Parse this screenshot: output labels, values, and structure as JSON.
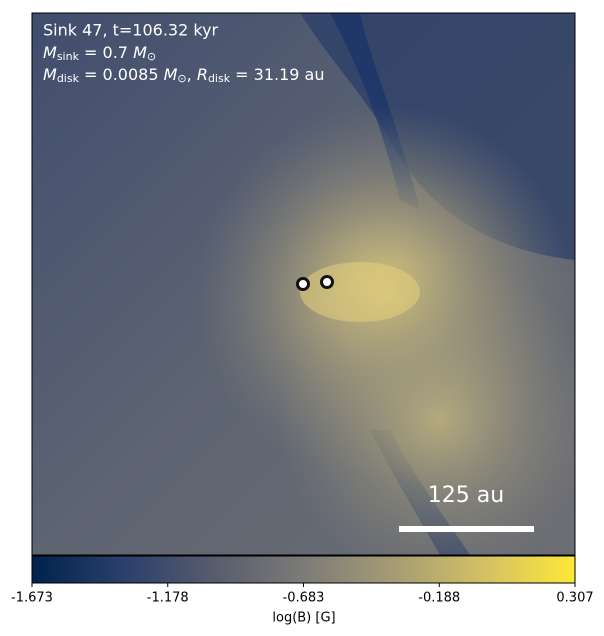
{
  "chart_data": {
    "type": "heatmap",
    "annotations": {
      "line1": [
        "Sink 47, t=106.32 kyr"
      ],
      "line2": [
        "M",
        "sink",
        " = 0.7 ",
        "M",
        "⊙"
      ],
      "line3": [
        "M",
        "disk",
        " = 0.0085 ",
        "M",
        "⊙",
        ", ",
        "R",
        "disk",
        " = 31.19 au"
      ]
    },
    "scale_bar": "125 au",
    "colorbar": {
      "label": "log(B) [G]",
      "clim": [
        -1.673,
        0.307
      ],
      "ticks": [
        -1.673,
        -1.178,
        -0.683,
        -0.188,
        0.307
      ],
      "colors": [
        "#00224e",
        "#2a3f6b",
        "#575c6d",
        "#7c7b78",
        "#a59c74",
        "#d3c164",
        "#fee838"
      ]
    }
  }
}
